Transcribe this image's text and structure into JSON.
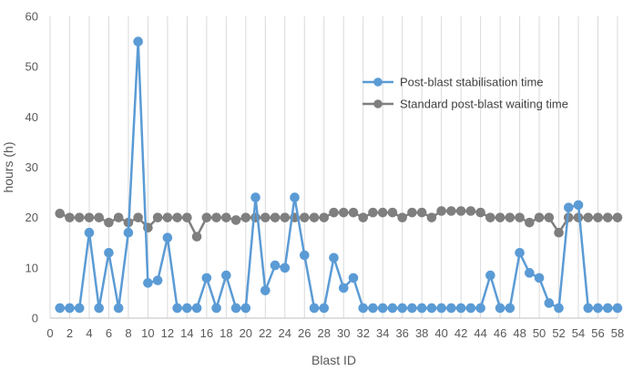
{
  "chart_data": {
    "type": "line",
    "xlabel": "Blast ID",
    "ylabel": "hours (h)",
    "xlim": [
      0,
      58
    ],
    "ylim": [
      0,
      60
    ],
    "x_ticks": [
      0,
      2,
      4,
      6,
      8,
      10,
      12,
      14,
      16,
      18,
      20,
      22,
      24,
      26,
      28,
      30,
      32,
      34,
      36,
      38,
      40,
      42,
      44,
      46,
      48,
      50,
      52,
      54,
      56,
      58
    ],
    "y_ticks": [
      0,
      10,
      20,
      30,
      40,
      50,
      60
    ],
    "grid": "vertical",
    "legend_position": "top-right",
    "x": [
      1,
      2,
      3,
      4,
      5,
      6,
      7,
      8,
      9,
      10,
      11,
      12,
      13,
      14,
      15,
      16,
      17,
      18,
      19,
      20,
      21,
      22,
      23,
      24,
      25,
      26,
      27,
      28,
      29,
      30,
      31,
      32,
      33,
      34,
      35,
      36,
      37,
      38,
      39,
      40,
      41,
      42,
      43,
      44,
      45,
      46,
      47,
      48,
      49,
      50,
      51,
      52,
      53,
      54,
      55,
      56,
      57,
      58
    ],
    "series": [
      {
        "name": "Post-blast stabilisation time",
        "color": "#5b9bd5",
        "values": [
          2,
          2,
          2,
          17,
          2,
          13,
          2,
          17,
          55,
          7,
          7.5,
          16,
          2,
          2,
          2,
          8,
          2,
          8.5,
          2,
          2,
          24,
          5.5,
          10.5,
          10,
          24,
          12.5,
          2,
          2,
          12,
          6,
          8,
          2,
          2,
          2,
          2,
          2,
          2,
          2,
          2,
          2,
          2,
          2,
          2,
          2,
          8.5,
          2,
          2,
          13,
          9,
          8,
          3,
          2,
          22,
          22.5,
          2,
          2,
          2,
          2
        ]
      },
      {
        "name": "Standard post-blast waiting time",
        "color": "#7f7f7f",
        "values": [
          20.8,
          20,
          20,
          20,
          20,
          19,
          20,
          19,
          20,
          18,
          20,
          20,
          20,
          20,
          16.2,
          20,
          20,
          20,
          19.5,
          20,
          20,
          20,
          20,
          20,
          20,
          20,
          20,
          20,
          21,
          21,
          21,
          20,
          21,
          21,
          21,
          20,
          21,
          21,
          20,
          21.3,
          21.3,
          21.3,
          21.3,
          21,
          20,
          20,
          20,
          20,
          19,
          20,
          20,
          17,
          20,
          20,
          20,
          20,
          20,
          20
        ]
      }
    ]
  }
}
